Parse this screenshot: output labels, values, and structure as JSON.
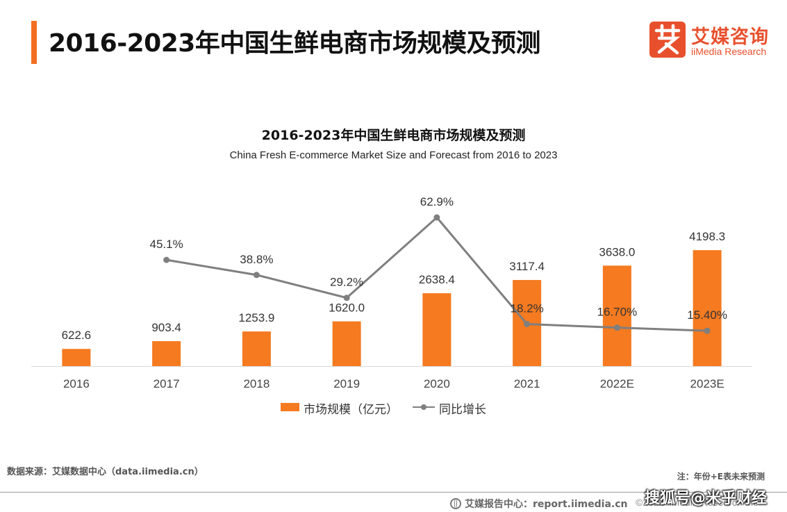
{
  "header": {
    "title": "2016-2023年中国生鲜电商市场规模及预测",
    "accent_color": "#f26f21"
  },
  "logo": {
    "mark_char": "艾",
    "name_cn": "艾媒咨询",
    "name_en": "iiMedia Research",
    "color": "#e8502d"
  },
  "chart_data": {
    "type": "bar",
    "title": "2016-2023年中国生鲜电商市场规模及预测",
    "subtitle": "China Fresh E-commerce Market Size and Forecast from 2016 to 2023",
    "categories": [
      "2016",
      "2017",
      "2018",
      "2019",
      "2020",
      "2021",
      "2022E",
      "2023E"
    ],
    "series": [
      {
        "name": "市场规模（亿元）",
        "type": "bar",
        "color": "#f57a20",
        "values": [
          622.6,
          903.4,
          1253.9,
          1620.0,
          2638.4,
          3117.4,
          3638.0,
          4198.3
        ],
        "labels": [
          "622.6",
          "903.4",
          "1253.9",
          "1620.0",
          "2638.4",
          "3117.4",
          "3638.0",
          "4198.3"
        ]
      },
      {
        "name": "同比增长",
        "type": "line",
        "color": "#7f7f7f",
        "values": [
          null,
          45.1,
          38.8,
          29.2,
          62.9,
          18.2,
          16.7,
          15.4
        ],
        "labels": [
          null,
          "45.1%",
          "38.8%",
          "29.2%",
          "62.9%",
          "18.2%",
          "16.70%",
          "15.40%"
        ]
      }
    ],
    "legend_position": "bottom",
    "grid": false
  },
  "footer": {
    "source": "数据来源：艾媒数据中心（data.iimedia.cn）",
    "note": "注：年份+E表未来预测",
    "report": "艾媒报告中心：report.iimedia.cn",
    "copyright": "©2022  iiMedia Research  Inc",
    "watermark": "搜狐号@米乎财经"
  }
}
